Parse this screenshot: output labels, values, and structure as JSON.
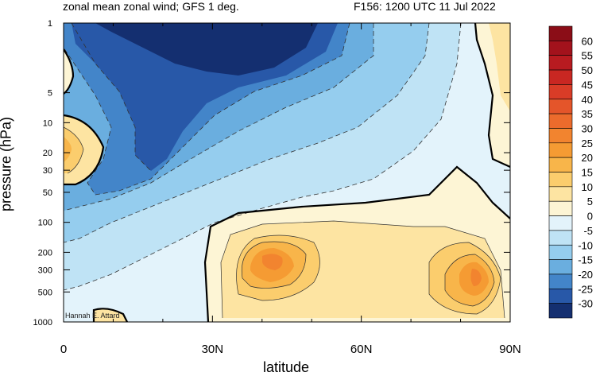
{
  "header": {
    "title_left": "zonal mean zonal wind; GFS 1 deg.",
    "title_right": "F156: 1200 UTC 11 Jul 2022"
  },
  "credit": "Hannah E. Attard",
  "chart_data": {
    "type": "heatmap",
    "title": "zonal mean zonal wind; GFS 1 deg.",
    "subtitle": "F156: 1200 UTC 11 Jul 2022",
    "xlabel": "latitude",
    "ylabel": "pressure (hPa)",
    "xlim": [
      0,
      90
    ],
    "ylim": [
      1000,
      1
    ],
    "y_scale": "log",
    "x_ticks": [
      {
        "value": 0,
        "label": "0"
      },
      {
        "value": 30,
        "label": "30N"
      },
      {
        "value": 60,
        "label": "60N"
      },
      {
        "value": 90,
        "label": "90N"
      }
    ],
    "y_ticks": [
      {
        "value": 1,
        "label": "1"
      },
      {
        "value": 5,
        "label": "5"
      },
      {
        "value": 10,
        "label": "10"
      },
      {
        "value": 20,
        "label": "20"
      },
      {
        "value": 30,
        "label": "30"
      },
      {
        "value": 50,
        "label": "50"
      },
      {
        "value": 100,
        "label": "100"
      },
      {
        "value": 200,
        "label": "200"
      },
      {
        "value": 300,
        "label": "300"
      },
      {
        "value": 500,
        "label": "500"
      },
      {
        "value": 1000,
        "label": "1000"
      }
    ],
    "colorbar": {
      "labels": [
        "60",
        "55",
        "50",
        "45",
        "40",
        "35",
        "30",
        "25",
        "20",
        "15",
        "10",
        "5",
        "0",
        "-5",
        "-10",
        "-15",
        "-20",
        "-25",
        "-30"
      ],
      "colors": [
        "#8b0d17",
        "#a3121c",
        "#b81b20",
        "#c92722",
        "#d93c27",
        "#e4552a",
        "#ec6b2c",
        "#f2842f",
        "#f59b33",
        "#f8b54a",
        "#fbcd6d",
        "#fde4a2",
        "#fdf5d5",
        "#e3f3fb",
        "#bfe3f5",
        "#95cdee",
        "#6aaedf",
        "#4385c9",
        "#2858a8",
        "#142f70"
      ]
    },
    "regions": [
      {
        "kind": "easterly_jet_upper_stratosphere",
        "lat_center": 28,
        "p_center": 1.5,
        "min_value": -30
      },
      {
        "kind": "subtropical_jet",
        "lat_center": 42,
        "p_center": 200,
        "max_value": 25
      },
      {
        "kind": "polar_jet",
        "lat_center": 84,
        "p_center": 300,
        "max_value": 25
      },
      {
        "kind": "equatorial_westerly",
        "lat_center": 0,
        "p_center": 20,
        "max_value": 15
      }
    ]
  }
}
